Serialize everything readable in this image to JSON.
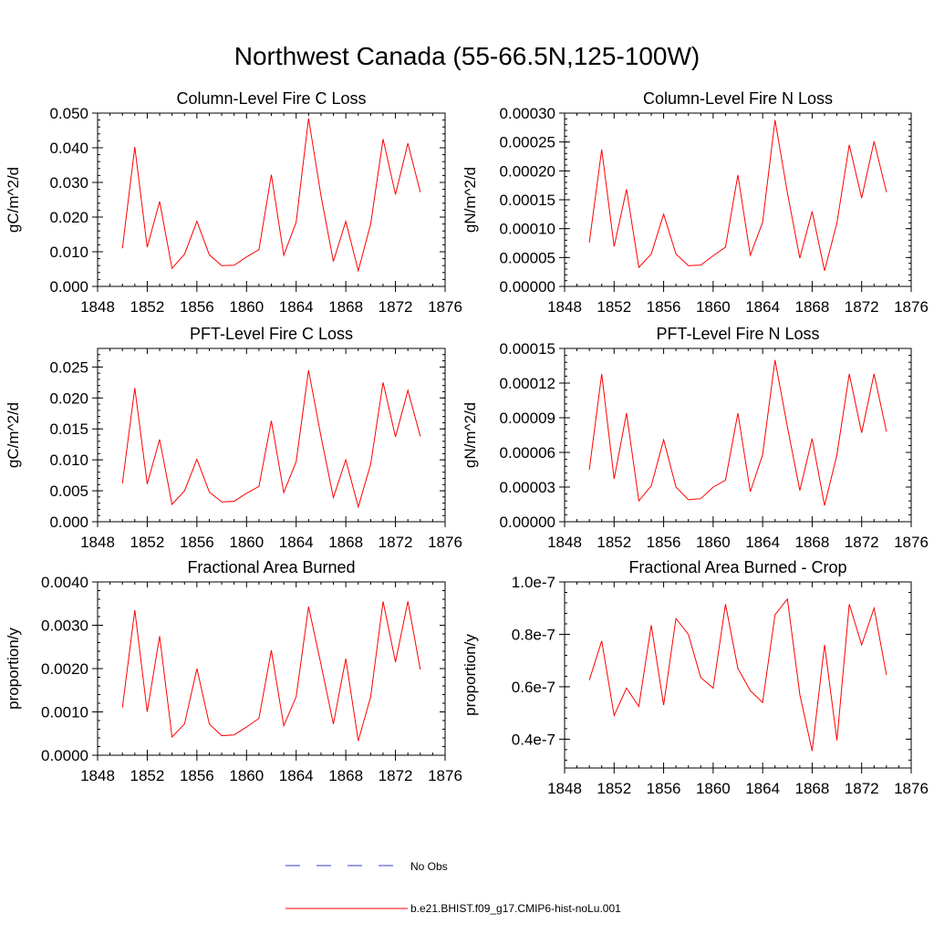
{
  "figure": {
    "title": "Northwest Canada (55-66.5N,125-100W)",
    "line_color": "#ff0000",
    "obs_color": "#3b3bd6",
    "legend": [
      {
        "label": "No Obs",
        "style": "dashed"
      },
      {
        "label": "b.e21.BHIST.f09_g17.CMIP6-hist-noLu.001",
        "style": "solid"
      }
    ]
  },
  "chart_data": [
    {
      "type": "line",
      "title": "Column-Level Fire C Loss",
      "ylabel": "gC/m^2/d",
      "xlim": [
        1848,
        1876
      ],
      "xticks": [
        "1848",
        "1852",
        "1856",
        "1860",
        "1864",
        "1868",
        "1872",
        "1876"
      ],
      "ylim": [
        0,
        0.05
      ],
      "yticks": [
        "0.000",
        "0.010",
        "0.020",
        "0.030",
        "0.040",
        "0.050"
      ],
      "x": [
        1850,
        1851,
        1852,
        1853,
        1854,
        1855,
        1856,
        1857,
        1858,
        1859,
        1860,
        1861,
        1862,
        1863,
        1864,
        1865,
        1866,
        1867,
        1868,
        1869,
        1870,
        1871,
        1872,
        1873,
        1874
      ],
      "series": [
        {
          "name": "b.e21.BHIST.f09_g17.CMIP6-hist-noLu.001",
          "values": [
            0.011,
            0.0402,
            0.0113,
            0.0245,
            0.0052,
            0.0093,
            0.0188,
            0.0091,
            0.006,
            0.0061,
            0.0085,
            0.0106,
            0.0322,
            0.009,
            0.0185,
            0.0485,
            0.0262,
            0.0072,
            0.0188,
            0.0045,
            0.018,
            0.0425,
            0.0265,
            0.0413,
            0.0272
          ]
        }
      ]
    },
    {
      "type": "line",
      "title": "Column-Level Fire N Loss",
      "ylabel": "gN/m^2/d",
      "xlim": [
        1848,
        1876
      ],
      "xticks": [
        "1848",
        "1852",
        "1856",
        "1860",
        "1864",
        "1868",
        "1872",
        "1876"
      ],
      "ylim": [
        0,
        0.0003
      ],
      "yticks": [
        "0.00000",
        "0.00005",
        "0.00010",
        "0.00015",
        "0.00020",
        "0.00025",
        "0.00030"
      ],
      "x": [
        1850,
        1851,
        1852,
        1853,
        1854,
        1855,
        1856,
        1857,
        1858,
        1859,
        1860,
        1861,
        1862,
        1863,
        1864,
        1865,
        1866,
        1867,
        1868,
        1869,
        1870,
        1871,
        1872,
        1873,
        1874
      ],
      "series": [
        {
          "name": "b.e21.BHIST.f09_g17.CMIP6-hist-noLu.001",
          "values": [
            7.6e-05,
            0.000237,
            6.9e-05,
            0.000168,
            3.3e-05,
            5.6e-05,
            0.000125,
            5.6e-05,
            3.6e-05,
            3.7e-05,
            5.3e-05,
            6.8e-05,
            0.000193,
            5.4e-05,
            0.000111,
            0.000288,
            0.000162,
            4.9e-05,
            0.00013,
            2.7e-05,
            0.00011,
            0.000245,
            0.000153,
            0.000251,
            0.000163
          ]
        }
      ]
    },
    {
      "type": "line",
      "title": "PFT-Level Fire C Loss",
      "ylabel": "gC/m^2/d",
      "xlim": [
        1848,
        1876
      ],
      "xticks": [
        "1848",
        "1852",
        "1856",
        "1860",
        "1864",
        "1868",
        "1872",
        "1876"
      ],
      "ylim": [
        0,
        0.028
      ],
      "yticks": [
        "0.000",
        "0.005",
        "0.010",
        "0.015",
        "0.020",
        "0.025"
      ],
      "ytick_values": [
        0,
        0.005,
        0.01,
        0.015,
        0.02,
        0.025
      ],
      "x": [
        1850,
        1851,
        1852,
        1853,
        1854,
        1855,
        1856,
        1857,
        1858,
        1859,
        1860,
        1861,
        1862,
        1863,
        1864,
        1865,
        1866,
        1867,
        1868,
        1869,
        1870,
        1871,
        1872,
        1873,
        1874
      ],
      "series": [
        {
          "name": "b.e21.BHIST.f09_g17.CMIP6-hist-noLu.001",
          "values": [
            0.0062,
            0.0216,
            0.0061,
            0.0133,
            0.0028,
            0.005,
            0.0101,
            0.0048,
            0.0032,
            0.0033,
            0.0046,
            0.0057,
            0.0163,
            0.0047,
            0.0097,
            0.0245,
            0.0138,
            0.0039,
            0.01,
            0.0024,
            0.0093,
            0.0225,
            0.0137,
            0.0212,
            0.0138
          ]
        }
      ]
    },
    {
      "type": "line",
      "title": "PFT-Level Fire N Loss",
      "ylabel": "gN/m^2/d",
      "xlim": [
        1848,
        1876
      ],
      "xticks": [
        "1848",
        "1852",
        "1856",
        "1860",
        "1864",
        "1868",
        "1872",
        "1876"
      ],
      "ylim": [
        0,
        0.00015
      ],
      "yticks": [
        "0.00000",
        "0.00003",
        "0.00006",
        "0.00009",
        "0.00012",
        "0.00015"
      ],
      "x": [
        1850,
        1851,
        1852,
        1853,
        1854,
        1855,
        1856,
        1857,
        1858,
        1859,
        1860,
        1861,
        1862,
        1863,
        1864,
        1865,
        1866,
        1867,
        1868,
        1869,
        1870,
        1871,
        1872,
        1873,
        1874
      ],
      "series": [
        {
          "name": "b.e21.BHIST.f09_g17.CMIP6-hist-noLu.001",
          "values": [
            4.5e-05,
            0.000128,
            3.7e-05,
            9.4e-05,
            1.8e-05,
            3.1e-05,
            7.1e-05,
            3e-05,
            1.9e-05,
            2e-05,
            3e-05,
            3.6e-05,
            9.4e-05,
            2.6e-05,
            5.8e-05,
            0.00014,
            8.2e-05,
            2.7e-05,
            7.2e-05,
            1.4e-05,
            5.8e-05,
            0.000128,
            7.7e-05,
            0.000128,
            7.8e-05
          ]
        }
      ]
    },
    {
      "type": "line",
      "title": "Fractional Area Burned",
      "ylabel": "proportion/y",
      "xlim": [
        1848,
        1876
      ],
      "xticks": [
        "1848",
        "1852",
        "1856",
        "1860",
        "1864",
        "1868",
        "1872",
        "1876"
      ],
      "ylim": [
        0,
        0.004
      ],
      "yticks": [
        "0.0000",
        "0.0010",
        "0.0020",
        "0.0030",
        "0.0040"
      ],
      "x": [
        1850,
        1851,
        1852,
        1853,
        1854,
        1855,
        1856,
        1857,
        1858,
        1859,
        1860,
        1861,
        1862,
        1863,
        1864,
        1865,
        1866,
        1867,
        1868,
        1869,
        1870,
        1871,
        1872,
        1873,
        1874
      ],
      "series": [
        {
          "name": "b.e21.BHIST.f09_g17.CMIP6-hist-noLu.001",
          "values": [
            0.0011,
            0.00335,
            0.001,
            0.00275,
            0.00042,
            0.00072,
            0.002,
            0.00072,
            0.00045,
            0.00047,
            0.00065,
            0.00085,
            0.00242,
            0.00068,
            0.00135,
            0.00343,
            0.0021,
            0.00072,
            0.00223,
            0.00033,
            0.00135,
            0.00355,
            0.00215,
            0.00355,
            0.00198
          ]
        }
      ]
    },
    {
      "type": "line",
      "title": "Fractional Area Burned - Crop",
      "ylabel": "proportion/y",
      "xlim": [
        1848,
        1876
      ],
      "xticks": [
        "1848",
        "1852",
        "1856",
        "1860",
        "1864",
        "1868",
        "1872",
        "1876"
      ],
      "ylim": [
        2.9e-08,
        1e-07
      ],
      "yticks": [
        "0.4e-7",
        "0.6e-7",
        "0.8e-7",
        "1.0e-7"
      ],
      "ytick_values": [
        4e-08,
        6e-08,
        8e-08,
        1e-07
      ],
      "x": [
        1850,
        1851,
        1852,
        1853,
        1854,
        1855,
        1856,
        1857,
        1858,
        1859,
        1860,
        1861,
        1862,
        1863,
        1864,
        1865,
        1866,
        1867,
        1868,
        1869,
        1870,
        1871,
        1872,
        1873,
        1874
      ],
      "series": [
        {
          "name": "b.e21.BHIST.f09_g17.CMIP6-hist-noLu.001",
          "values": [
            6.25e-08,
            7.75e-08,
            4.9e-08,
            5.95e-08,
            5.25e-08,
            8.35e-08,
            5.3e-08,
            8.6e-08,
            8e-08,
            6.35e-08,
            5.95e-08,
            9.15e-08,
            6.7e-08,
            5.85e-08,
            5.4e-08,
            8.75e-08,
            9.35e-08,
            5.7e-08,
            3.55e-08,
            7.6e-08,
            3.95e-08,
            9.15e-08,
            7.6e-08,
            9e-08,
            6.45e-08
          ]
        }
      ]
    }
  ]
}
